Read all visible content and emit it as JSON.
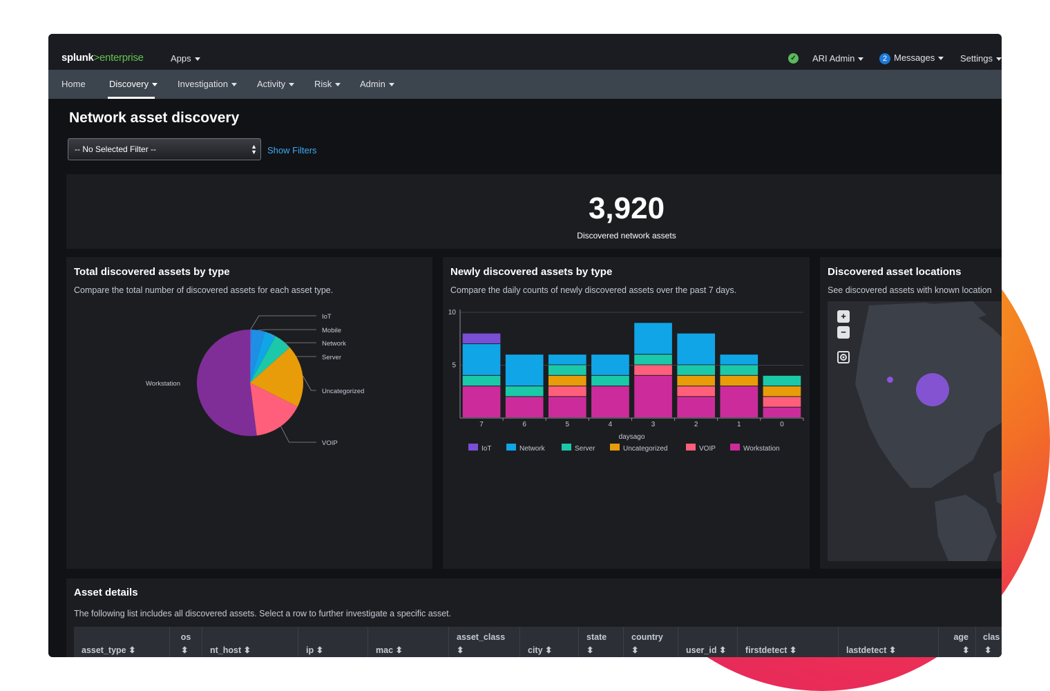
{
  "topbar": {
    "logo_main": "splunk",
    "logo_accent": ">enterprise",
    "apps_label": "Apps",
    "status_icon": "check-circle-icon",
    "status_glyph": "✓",
    "user_label": "ARI Admin",
    "messages_count": "2",
    "messages_label": "Messages",
    "settings_label": "Settings"
  },
  "nav": {
    "home": "Home",
    "discovery": "Discovery",
    "investigation": "Investigation",
    "activity": "Activity",
    "risk": "Risk",
    "admin": "Admin",
    "active": "Discovery"
  },
  "page": {
    "title": "Network asset discovery",
    "filter_value": "-- No Selected Filter --",
    "show_filters": "Show Filters"
  },
  "kpi": {
    "value": "3,920",
    "label": "Discovered network assets"
  },
  "panels": {
    "total": {
      "title": "Total discovered assets by type",
      "desc": "Compare the total number of discovered assets for each asset type."
    },
    "newly": {
      "title": "Newly discovered assets by type",
      "desc": "Compare the daily counts of newly discovered assets over the past 7 days."
    },
    "locations": {
      "title": "Discovered asset locations",
      "desc": "See discovered assets with known location"
    }
  },
  "map": {
    "zoom_in": "+",
    "zoom_out": "−",
    "locate_icon": "crosshair-icon"
  },
  "colors": {
    "IoT": "#7a4fd6",
    "Mobile": "#1f8fe6",
    "Network": "#10a5e6",
    "Server": "#1bc9a8",
    "Uncategorized": "#e89c0a",
    "VOIP": "#ff5f7a",
    "Workstation": "#cc2c9b",
    "WorkstationPie": "#7f2e98",
    "accent_link": "#3ea9f5"
  },
  "chart_data": [
    {
      "type": "pie",
      "categories": [
        "IoT",
        "Mobile",
        "Network",
        "Server",
        "Uncategorized",
        "VOIP",
        "Workstation"
      ],
      "values": [
        0.3,
        4.2,
        3.5,
        5.4,
        19.0,
        15.6,
        52.0
      ],
      "labels": [
        "IoT",
        "Mobile",
        "Network",
        "Server",
        "Uncategorized",
        "VOIP",
        "Workstation"
      ]
    },
    {
      "type": "bar",
      "stacked": true,
      "xlabel": "daysago",
      "categories": [
        "7",
        "6",
        "5",
        "4",
        "3",
        "2",
        "1",
        "0"
      ],
      "ylim": [
        0,
        10
      ],
      "yticks": [
        "5",
        "10"
      ],
      "grid": true,
      "legend_position": "bottom",
      "series": [
        {
          "name": "Workstation",
          "values": [
            3,
            2,
            2,
            3,
            4,
            2,
            3,
            1
          ]
        },
        {
          "name": "VOIP",
          "values": [
            0,
            0,
            1,
            0,
            1,
            1,
            0,
            1
          ]
        },
        {
          "name": "Uncategorized",
          "values": [
            0,
            0,
            1,
            0,
            0,
            1,
            1,
            1
          ]
        },
        {
          "name": "Server",
          "values": [
            1,
            1,
            1,
            1,
            1,
            1,
            1,
            1
          ]
        },
        {
          "name": "Network",
          "values": [
            3,
            3,
            1,
            2,
            3,
            3,
            1,
            0
          ]
        },
        {
          "name": "IoT",
          "values": [
            1,
            0,
            0,
            0,
            0,
            0,
            0,
            0
          ]
        }
      ]
    }
  ],
  "legend_items": [
    "IoT",
    "Network",
    "Server",
    "Uncategorized",
    "VOIP",
    "Workstation"
  ],
  "table": {
    "title": "Asset details",
    "desc": "The following list includes all discovered assets. Select a row to further investigate a specific asset.",
    "sort_glyph": "⬍",
    "headers": {
      "asset_type": "asset_type",
      "os": "os",
      "nt_host": "nt_host",
      "ip": "ip",
      "mac": "mac",
      "asset_class": "asset_class",
      "city": "city",
      "state": "state",
      "country": "country",
      "user_id": "user_id",
      "firstdetect": "firstdetect",
      "lastdetect": "lastdetect",
      "age": "age",
      "clas": "clas"
    }
  }
}
